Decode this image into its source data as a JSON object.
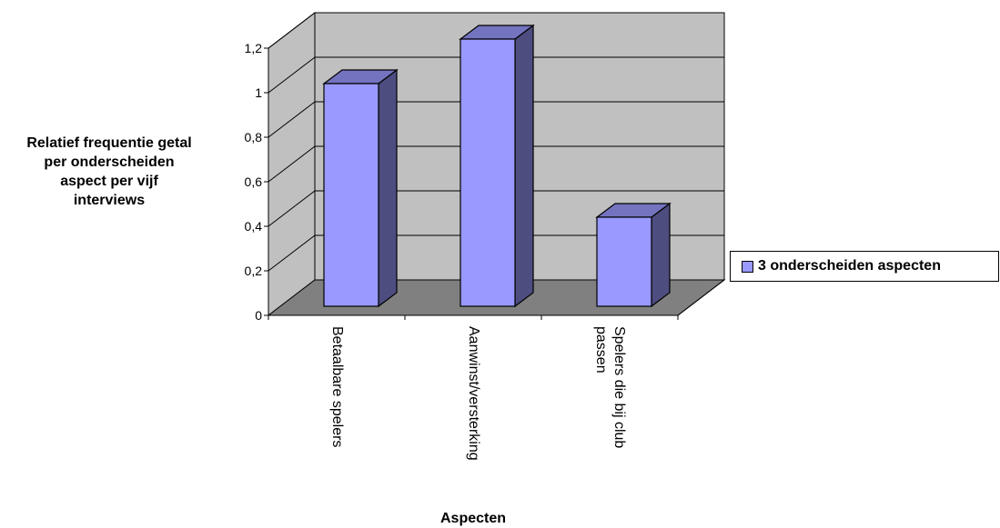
{
  "chart_data": {
    "type": "bar",
    "style": "3d-column",
    "categories": [
      "Betaalbare spelers",
      "Aanwinst/versterking",
      "Spelers die bij club passen"
    ],
    "category_label_lines": [
      [
        "Betaalbare spelers"
      ],
      [
        "Aanwinst/versterking"
      ],
      [
        "Spelers die bij club",
        "passen"
      ]
    ],
    "series": [
      {
        "name": "3 onderscheiden aspecten",
        "values": [
          1.0,
          1.2,
          0.4
        ],
        "color": "#9999ff"
      }
    ],
    "xlabel": "Aspecten",
    "ylabel_lines": [
      "Relatief frequentie getal",
      "per onderscheiden",
      "aspect per vijf",
      "interviews"
    ],
    "ylim": [
      0,
      1.2
    ],
    "yticks": [
      0,
      0.2,
      0.4,
      0.6,
      0.8,
      1.0,
      1.2
    ],
    "ytick_labels": [
      "0",
      "0,2",
      "0,4",
      "0,6",
      "0,8",
      "1",
      "1,2"
    ],
    "grid": true,
    "legend_position": "right",
    "colors": {
      "wall": "#c0c0c0",
      "floor": "#808080",
      "bar_front": "#9999ff",
      "bar_top": "#7373bf",
      "bar_side": "#4d4d80"
    }
  }
}
